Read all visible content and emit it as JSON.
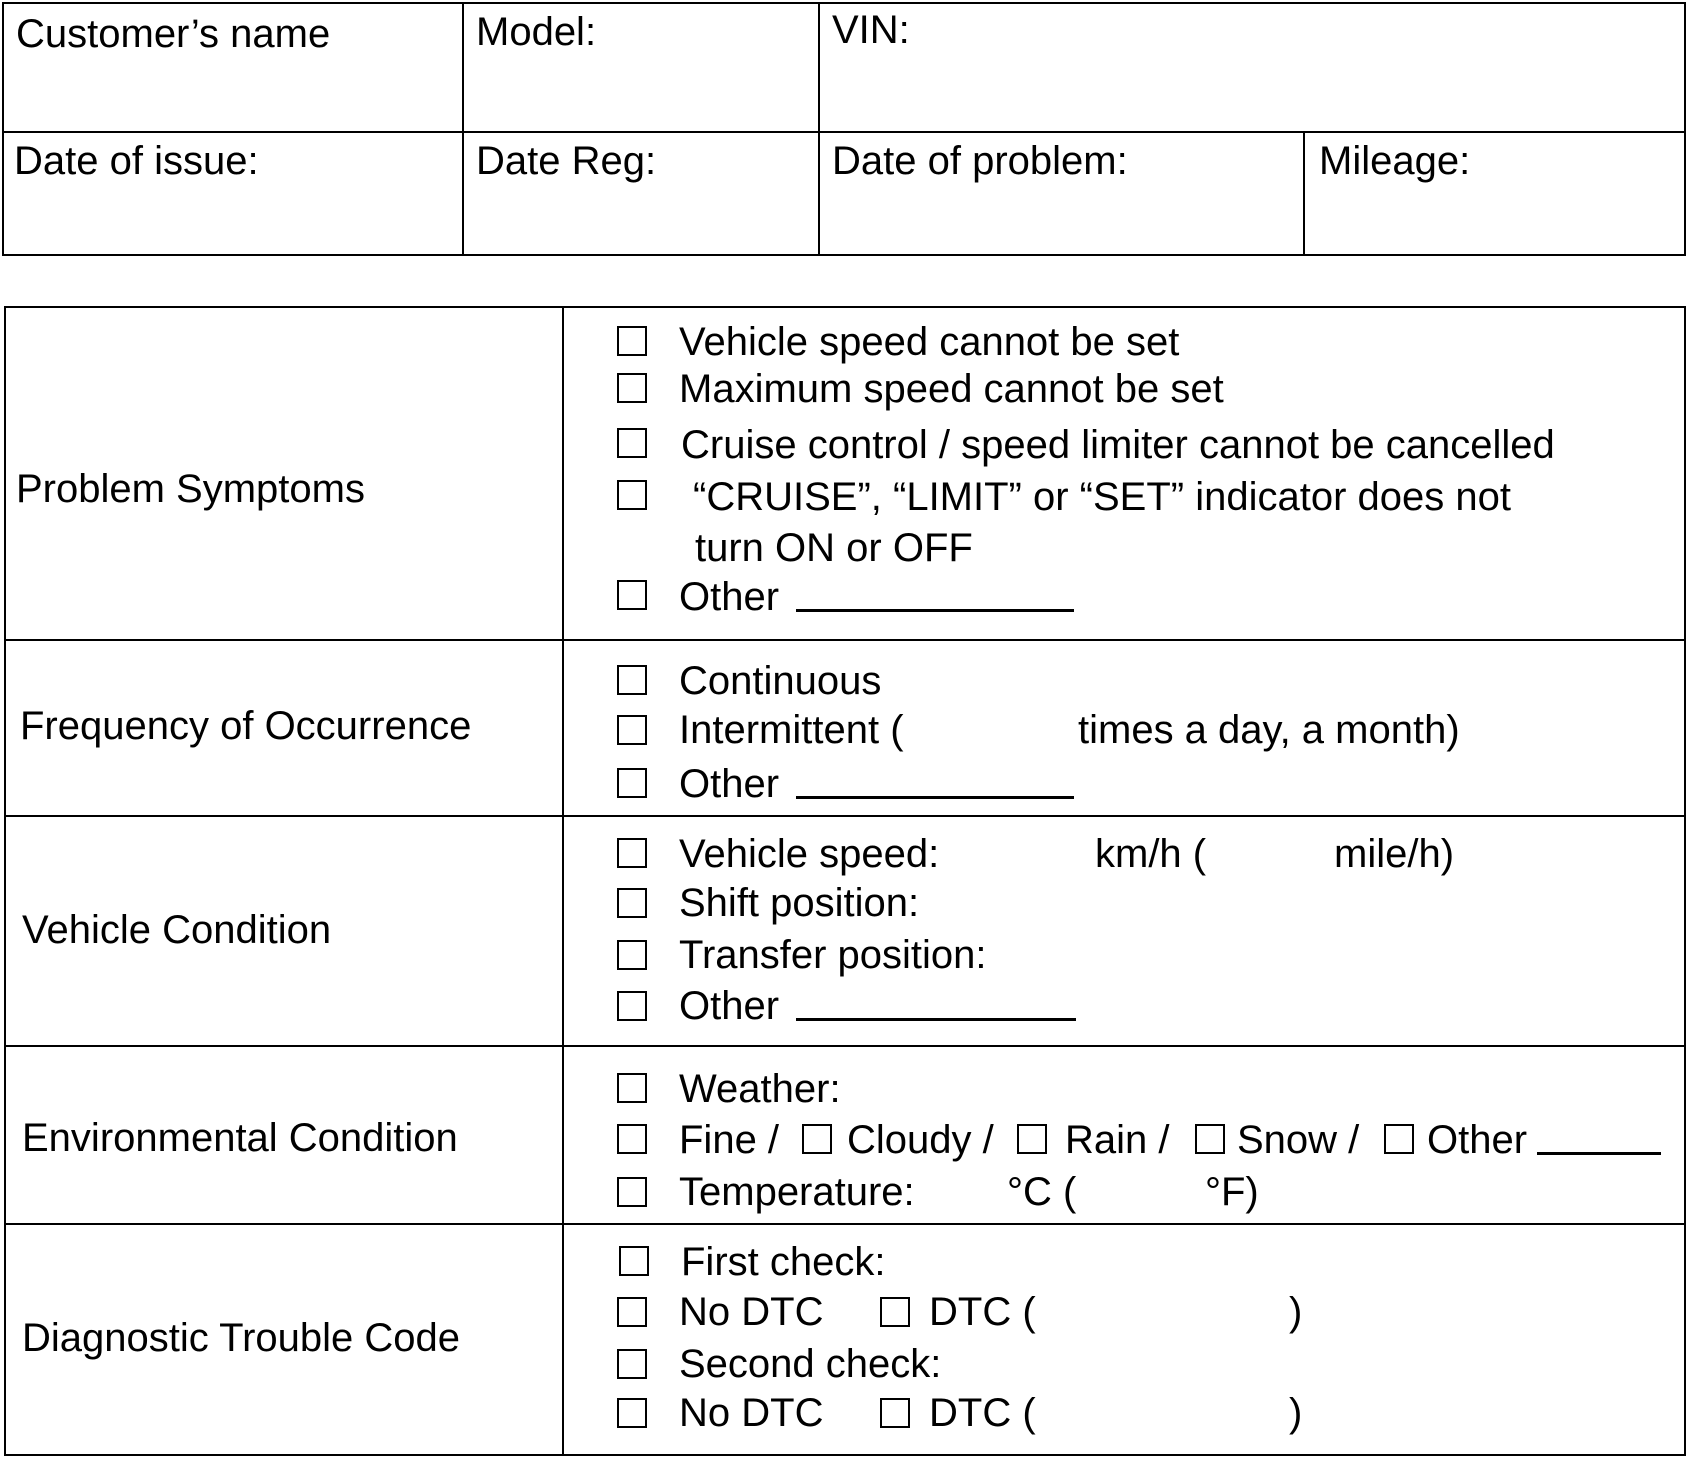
{
  "header": {
    "customer_name": "Customer’s name",
    "model": "Model:",
    "vin": "VIN:",
    "date_of_issue": "Date of issue:",
    "date_reg": "Date Reg:",
    "date_of_problem": "Date of problem:",
    "mileage": "Mileage:"
  },
  "sections": {
    "problem_symptoms": {
      "title": "Problem Symptoms",
      "items": [
        "Vehicle speed cannot be set",
        "Maximum speed cannot be set",
        "Cruise control / speed limiter cannot be cancelled",
        "“CRUISE”, “LIMIT” or “SET” indicator does not",
        "turn ON or OFF",
        "Other"
      ]
    },
    "frequency": {
      "title": "Frequency of Occurrence",
      "continuous": "Continuous",
      "intermittent_open": "Intermittent (",
      "intermittent_close": "times a day, a month)",
      "other": "Other"
    },
    "vehicle_condition": {
      "title": "Vehicle Condition",
      "speed": "Vehicle speed:",
      "kmh": "km/h (",
      "mileh": "mile/h)",
      "shift": "Shift position:",
      "transfer": "Transfer position:",
      "other": "Other"
    },
    "environmental": {
      "title": "Environmental Condition",
      "weather": "Weather:",
      "fine": "Fine /",
      "cloudy": "Cloudy /",
      "rain": "Rain /",
      "snow": "Snow /",
      "other": "Other",
      "temperature": "Temperature:",
      "celsius": "°C (",
      "fahrenheit": "°F)"
    },
    "dtc": {
      "title": "Diagnostic Trouble Code",
      "first_check": "First check:",
      "no_dtc": "No DTC",
      "dtc_open": "DTC  (",
      "close_paren": ")",
      "second_check": "Second check:"
    }
  }
}
